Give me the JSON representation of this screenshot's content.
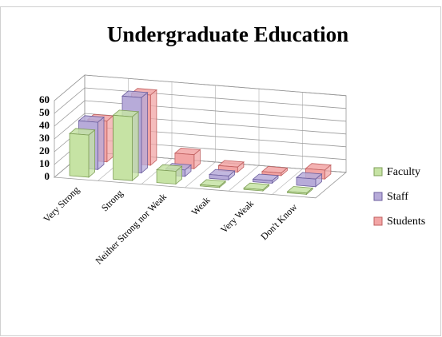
{
  "chart_data": {
    "type": "bar3d",
    "title": "Undergraduate Education",
    "categories": [
      "Very Strong",
      "Strong",
      "Neither Strong nor Weak",
      "Weak",
      "Very Weak",
      "Don't Know"
    ],
    "series": [
      {
        "name": "Faculty",
        "color": "#c6e3a4",
        "values": [
          33,
          50,
          10,
          1,
          1,
          1
        ]
      },
      {
        "name": "Staff",
        "color": "#b7abd9",
        "values": [
          37,
          59,
          5,
          3,
          2,
          6
        ]
      },
      {
        "name": "Students",
        "color": "#f2a5a5",
        "values": [
          32,
          55,
          11,
          4,
          2,
          7
        ]
      }
    ],
    "ylim": [
      0,
      60
    ],
    "yticks": [
      0,
      10,
      20,
      30,
      40,
      50,
      60
    ],
    "grid": true,
    "legend": "right"
  }
}
